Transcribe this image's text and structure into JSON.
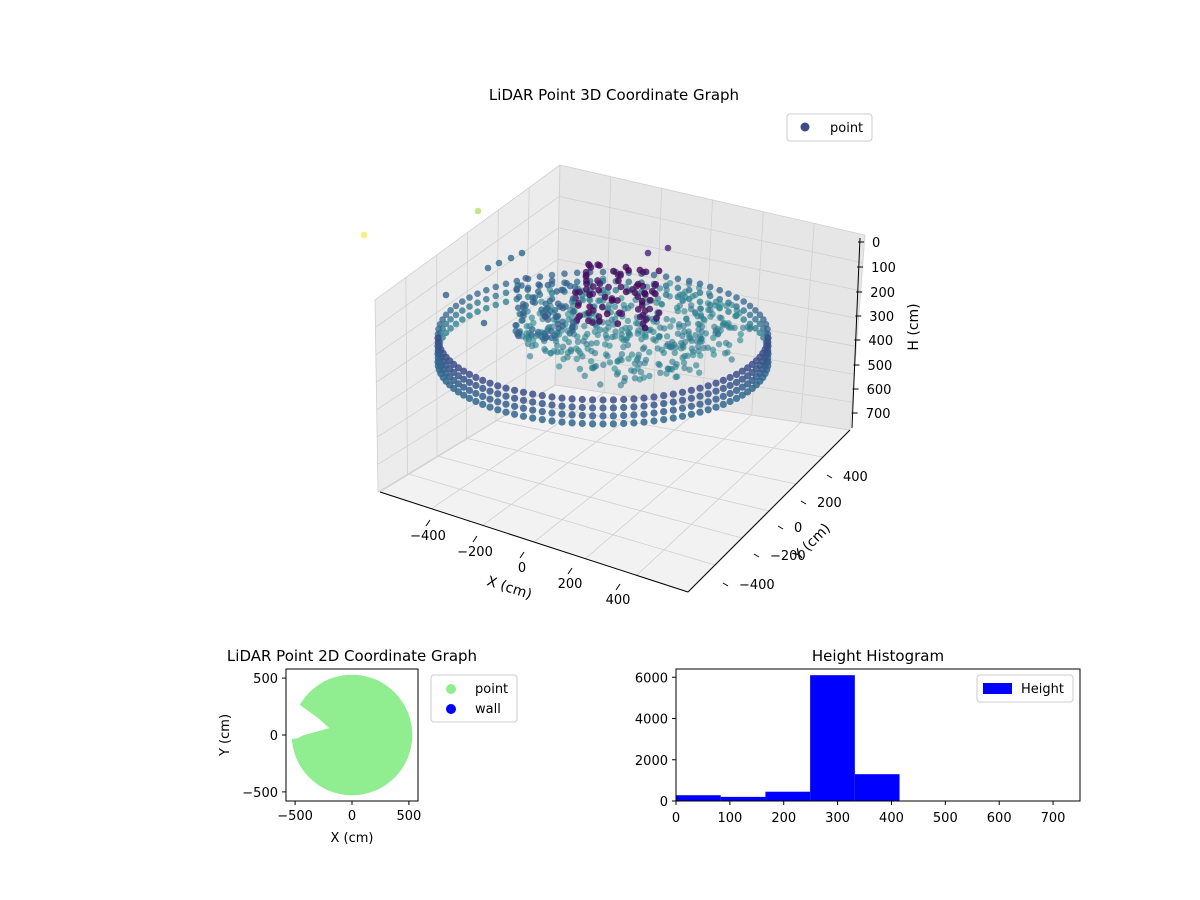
{
  "chart_data": [
    {
      "type": "scatter3d",
      "title": "LiDAR Point 3D Coordinate Graph",
      "xlabel": "X (cm)",
      "ylabel": "Y (cm)",
      "zlabel": "H (cm)",
      "x_ticks": [
        "−400",
        "−200",
        "0",
        "200",
        "400"
      ],
      "y_ticks": [
        "400",
        "200",
        "0",
        "−200",
        "−400"
      ],
      "z_ticks": [
        "0",
        "100",
        "200",
        "300",
        "400",
        "500",
        "600",
        "700"
      ],
      "xlim": [
        -550,
        550
      ],
      "ylim": [
        -550,
        550
      ],
      "zlim": [
        0,
        750
      ],
      "z_inverted": true,
      "colormap": "viridis",
      "legend": {
        "entries": [
          "point"
        ],
        "placement": "top-right"
      },
      "series": [
        {
          "name": "point",
          "ring_radius": 430,
          "ring_height_range": [
            300,
            420
          ],
          "outliers": [
            {
              "x": -520,
              "y": 120,
              "h": 20
            },
            {
              "x": -350,
              "y": 300,
              "h": 60
            }
          ]
        }
      ]
    },
    {
      "type": "scatter",
      "title": "LiDAR Point 2D Coordinate Graph",
      "xlabel": "X (cm)",
      "ylabel": "Y (cm)",
      "x_ticks": [
        "−500",
        "0",
        "500"
      ],
      "y_ticks": [
        "500",
        "0",
        "−500"
      ],
      "xlim": [
        -580,
        580
      ],
      "ylim": [
        -580,
        580
      ],
      "legend": {
        "entries": [
          "point",
          "wall"
        ],
        "placement": "outside-right"
      },
      "series": [
        {
          "name": "point",
          "color": "#90ee90",
          "shape": "disc",
          "radius": 530
        },
        {
          "name": "wall",
          "color": "#0000ff"
        }
      ]
    },
    {
      "type": "bar",
      "title": "Height Histogram",
      "xlabel": "",
      "ylabel": "",
      "x_ticks": [
        "0",
        "100",
        "200",
        "300",
        "400",
        "500",
        "600",
        "700"
      ],
      "y_ticks": [
        "0",
        "2000",
        "4000",
        "6000"
      ],
      "xlim": [
        0,
        750
      ],
      "ylim": [
        0,
        6400
      ],
      "bin_edges": [
        0,
        83,
        166,
        249,
        332,
        415,
        498,
        581,
        664,
        747
      ],
      "values": [
        280,
        200,
        450,
        6100,
        1300,
        0,
        0,
        0,
        0
      ],
      "legend": {
        "entries": [
          "Height"
        ],
        "placement": "top-right"
      },
      "series": [
        {
          "name": "Height",
          "color": "#0000ff"
        }
      ]
    }
  ]
}
